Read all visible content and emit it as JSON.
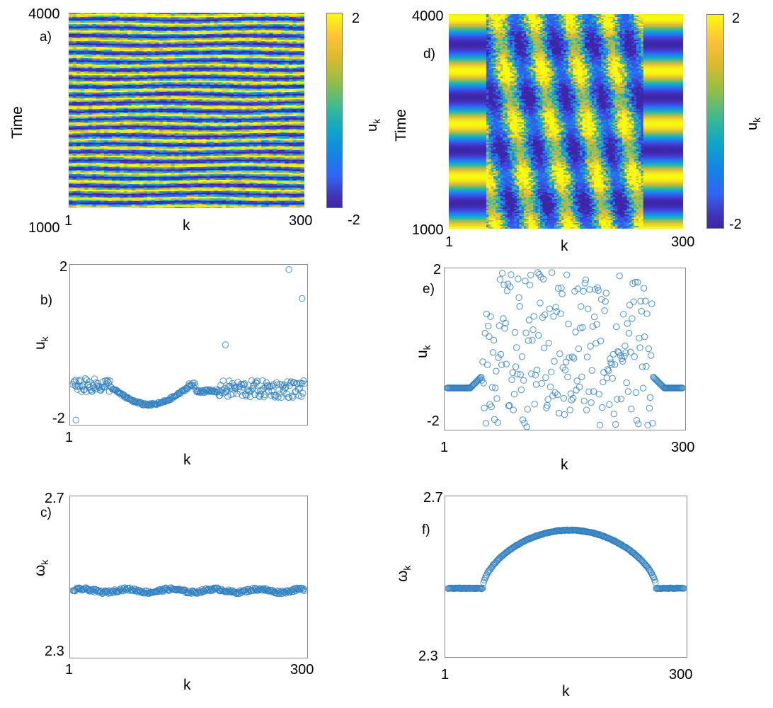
{
  "colors": {
    "series": "#2f7fbf",
    "heat_low": "#3e26a8",
    "heat_mid": "#1f8fd8",
    "heat_high": "#f9d12a",
    "axis": "#8a8a8a"
  },
  "heatmaps": [
    {
      "panel": "a)",
      "ylabel": "Time",
      "xlabel": "k",
      "x_start": "1",
      "x_end": "300",
      "y_top": "4000",
      "y_bottom": "1000",
      "colorbar": {
        "label": "u",
        "label_sub": "k",
        "max": "2",
        "min": "-2"
      }
    },
    {
      "panel": "d)",
      "ylabel": "Time",
      "xlabel": "k",
      "x_start": "1",
      "x_end": "300",
      "y_top": "4000",
      "y_bottom": "1000",
      "colorbar": {
        "label": "u",
        "label_sub": "k",
        "max": "2",
        "min": "-2"
      }
    }
  ],
  "scatters": [
    {
      "panel": "b)",
      "ylabel": "u",
      "ylabel_sub": "k",
      "xlabel": "k",
      "x_start": "1",
      "x_end": "300",
      "y_top": "2",
      "y_bottom": "-2"
    },
    {
      "panel": "c)",
      "ylabel": "ω",
      "ylabel_sub": "k",
      "xlabel": "k",
      "x_start": "1",
      "x_end": "300",
      "y_top": "2.7",
      "y_bottom": "2.3"
    },
    {
      "panel": "e)",
      "ylabel": "u",
      "ylabel_sub": "k",
      "xlabel": "k",
      "x_start": "1",
      "x_end": "300",
      "y_top": "2",
      "y_bottom": "-2"
    },
    {
      "panel": "f)",
      "ylabel": "ω",
      "ylabel_sub": "k",
      "xlabel": "k",
      "x_start": "1",
      "x_end": "300",
      "y_top": "2.7",
      "y_bottom": "2.3"
    }
  ],
  "chart_data": [
    {
      "type": "heatmap",
      "id": "a",
      "x_range": [
        1,
        300
      ],
      "y_range": [
        1000,
        4000
      ],
      "xlabel": "k",
      "ylabel": "Time",
      "colorbar_label": "u_k",
      "color_range": [
        -2,
        2
      ],
      "description_pattern": "horizontal bands alternating yellow/blue, ~24 periods across time"
    },
    {
      "type": "heatmap",
      "id": "d",
      "x_range": [
        1,
        300
      ],
      "y_range": [
        1000,
        4000
      ],
      "xlabel": "k",
      "ylabel": "Time",
      "colorbar_label": "u_k",
      "color_range": [
        -2,
        2
      ],
      "description_pattern": "coherent bands at edges (k<50, k>250), incoherent fine stripes in the middle"
    },
    {
      "type": "scatter",
      "id": "b",
      "xlabel": "k",
      "ylabel": "u_k",
      "xlim": [
        1,
        300
      ],
      "ylim": [
        -2,
        2
      ],
      "series": [
        {
          "name": "u_k",
          "generator": "b",
          "points": 300,
          "outliers": [
            {
              "x": 280,
              "y": 1.95
            },
            {
              "x": 297,
              "y": 1.2
            },
            {
              "x": 198,
              "y": 0.0
            }
          ]
        }
      ]
    },
    {
      "type": "scatter",
      "id": "c",
      "xlabel": "k",
      "ylabel": "ω_k",
      "xlim": [
        1,
        300
      ],
      "ylim": [
        2.3,
        2.7
      ],
      "series": [
        {
          "name": "ω_k",
          "generator": "c",
          "points": 300,
          "baseline": 2.465
        }
      ]
    },
    {
      "type": "scatter",
      "id": "e",
      "xlabel": "k",
      "ylabel": "u_k",
      "xlim": [
        1,
        300
      ],
      "ylim": [
        -2,
        2
      ],
      "series": [
        {
          "name": "u_k",
          "generator": "e",
          "points": 300,
          "edge_value": -1.0
        }
      ]
    },
    {
      "type": "scatter",
      "id": "f",
      "xlabel": "k",
      "ylabel": "ω_k",
      "xlim": [
        1,
        300
      ],
      "ylim": [
        2.3,
        2.7
      ],
      "series": [
        {
          "name": "ω_k",
          "generator": "f",
          "points": 300,
          "edge_value": 2.47,
          "peak_value": 2.62,
          "rise_start": 45,
          "fall_end": 265
        }
      ]
    }
  ]
}
